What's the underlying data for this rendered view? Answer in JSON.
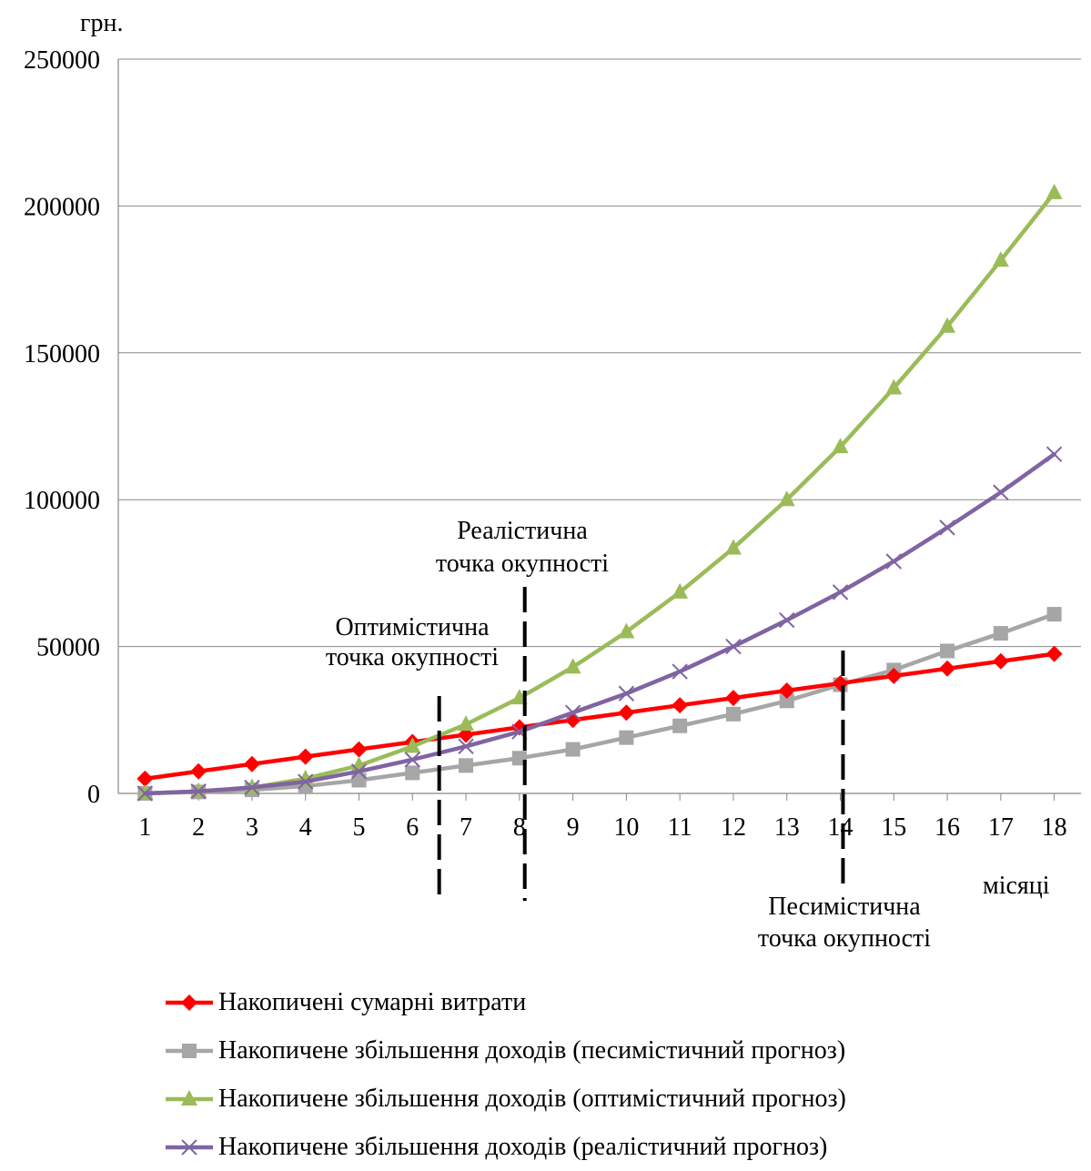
{
  "chart_data": {
    "type": "line",
    "ylabel": "грн.",
    "xlabel": "місяці",
    "ylim": [
      0,
      250000
    ],
    "yticks": [
      0,
      50000,
      100000,
      150000,
      200000,
      250000
    ],
    "categories": [
      "1",
      "2",
      "3",
      "4",
      "5",
      "6",
      "7",
      "8",
      "9",
      "10",
      "11",
      "12",
      "13",
      "14",
      "15",
      "16",
      "17",
      "18"
    ],
    "grid": "horizontal",
    "legend_position": "bottom",
    "series": [
      {
        "name": "Накопичені сумарні витрати",
        "color": "#ff0000",
        "marker": "diamond",
        "values": [
          5000,
          7500,
          10000,
          12500,
          15000,
          17500,
          20000,
          22500,
          25000,
          27500,
          30000,
          32500,
          35000,
          37500,
          40000,
          42500,
          45000,
          47500
        ]
      },
      {
        "name": "Накопичене збільшення доходів (песимістичний прогноз)",
        "color": "#a6a6a6",
        "marker": "square",
        "values": [
          0,
          500,
          1200,
          2500,
          4500,
          7000,
          9500,
          12000,
          15000,
          19000,
          23000,
          27000,
          31500,
          37000,
          42000,
          48500,
          54500,
          61000
        ]
      },
      {
        "name": "Накопичене збільшення доходів (оптимістичний прогноз)",
        "color": "#9bbb59",
        "marker": "triangle",
        "values": [
          0,
          700,
          2000,
          5000,
          9500,
          16000,
          23500,
          32500,
          43000,
          55000,
          68500,
          83500,
          100000,
          118000,
          138000,
          159000,
          181500,
          204500
        ]
      },
      {
        "name": "Накопичене збільшення доходів (реалістичний прогноз)",
        "color": "#8064a2",
        "marker": "x",
        "values": [
          0,
          700,
          2000,
          4000,
          7500,
          11500,
          16000,
          21000,
          27500,
          34000,
          41500,
          50000,
          59000,
          68500,
          79000,
          90500,
          102500,
          115500
        ]
      }
    ],
    "annotations": [
      {
        "lines": [
          "Оптимістична",
          "точка окупності"
        ],
        "x": 6.5
      },
      {
        "lines": [
          "Реалістична",
          "точка окупності"
        ],
        "x": 8.1
      },
      {
        "lines": [
          "Песимістична",
          "точка окупності"
        ],
        "x": 14.05
      }
    ]
  }
}
